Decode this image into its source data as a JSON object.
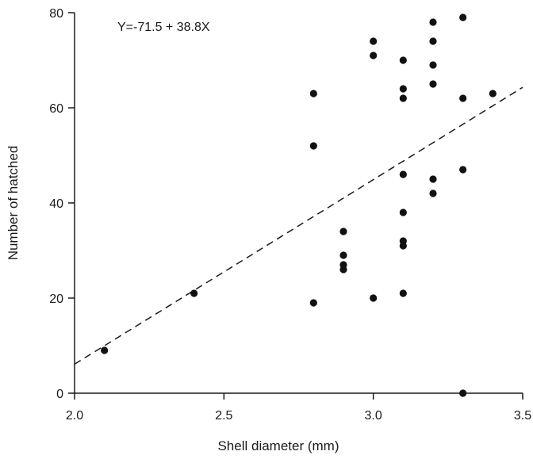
{
  "chart_data": {
    "type": "scatter",
    "title": "",
    "xlabel": "Shell diameter (mm)",
    "ylabel": "Number of hatched",
    "xlim": [
      2.0,
      3.5
    ],
    "ylim": [
      0,
      80
    ],
    "xticks": [
      2.0,
      2.5,
      3.0,
      3.5
    ],
    "xtick_labels": [
      "2.0",
      "2.5",
      "3.0",
      "3.5"
    ],
    "yticks": [
      0,
      20,
      40,
      60,
      80
    ],
    "ytick_labels": [
      "0",
      "20",
      "40",
      "60",
      "80"
    ],
    "grid": false,
    "annotation": "Y=-71.5 + 38.8X",
    "regression": {
      "intercept": -71.5,
      "slope": 38.8,
      "style": "dashed"
    },
    "points": [
      {
        "x": 2.1,
        "y": 9
      },
      {
        "x": 2.4,
        "y": 21
      },
      {
        "x": 2.8,
        "y": 63
      },
      {
        "x": 2.8,
        "y": 52
      },
      {
        "x": 2.8,
        "y": 19
      },
      {
        "x": 2.9,
        "y": 34
      },
      {
        "x": 2.9,
        "y": 29
      },
      {
        "x": 2.9,
        "y": 27
      },
      {
        "x": 2.9,
        "y": 26
      },
      {
        "x": 3.0,
        "y": 74
      },
      {
        "x": 3.0,
        "y": 71
      },
      {
        "x": 3.0,
        "y": 20
      },
      {
        "x": 3.1,
        "y": 70
      },
      {
        "x": 3.1,
        "y": 64
      },
      {
        "x": 3.1,
        "y": 62
      },
      {
        "x": 3.1,
        "y": 46
      },
      {
        "x": 3.1,
        "y": 38
      },
      {
        "x": 3.1,
        "y": 32
      },
      {
        "x": 3.1,
        "y": 31
      },
      {
        "x": 3.1,
        "y": 21
      },
      {
        "x": 3.2,
        "y": 78
      },
      {
        "x": 3.2,
        "y": 74
      },
      {
        "x": 3.2,
        "y": 69
      },
      {
        "x": 3.2,
        "y": 65
      },
      {
        "x": 3.2,
        "y": 45
      },
      {
        "x": 3.2,
        "y": 42
      },
      {
        "x": 3.3,
        "y": 79
      },
      {
        "x": 3.3,
        "y": 62
      },
      {
        "x": 3.3,
        "y": 47
      },
      {
        "x": 3.3,
        "y": 0
      },
      {
        "x": 3.4,
        "y": 63
      }
    ]
  }
}
